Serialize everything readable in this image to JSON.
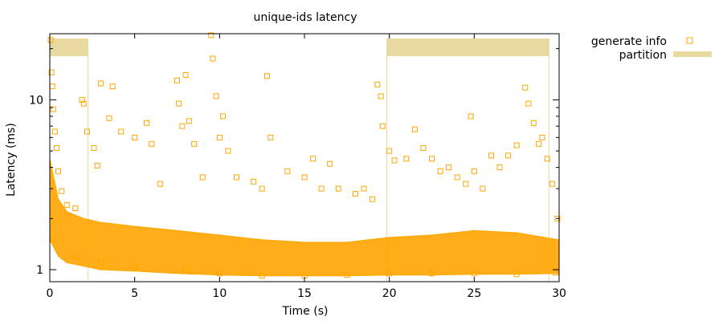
{
  "chart_data": {
    "type": "scatter",
    "title": "unique-ids latency",
    "xlabel": "Time (s)",
    "ylabel": "Latency (ms)",
    "xlim": [
      0,
      30
    ],
    "ylim": [
      0.85,
      24.5
    ],
    "yscale": "log",
    "grid": false,
    "legend_position": "top-right outside",
    "xticks": [
      0,
      5,
      10,
      15,
      20,
      25,
      30
    ],
    "xtick_labels": [
      "0",
      "5",
      "10",
      "15",
      "20",
      "25",
      "30"
    ],
    "yticks": [
      1,
      10
    ],
    "ytick_labels": [
      "1",
      "10"
    ],
    "series": [
      {
        "name": "generate info",
        "marker": "open-square",
        "color": "#ffa500",
        "points": [
          [
            0.05,
            22.5
          ],
          [
            0.1,
            14.5
          ],
          [
            0.15,
            12.0
          ],
          [
            0.2,
            8.8
          ],
          [
            0.3,
            6.5
          ],
          [
            0.4,
            5.2
          ],
          [
            0.5,
            3.8
          ],
          [
            0.7,
            2.9
          ],
          [
            1.0,
            2.4
          ],
          [
            1.5,
            2.3
          ],
          [
            1.9,
            10.0
          ],
          [
            2.0,
            9.5
          ],
          [
            2.2,
            6.5
          ],
          [
            2.6,
            5.2
          ],
          [
            2.8,
            4.1
          ],
          [
            3.0,
            12.5
          ],
          [
            3.5,
            7.8
          ],
          [
            3.7,
            12.0
          ],
          [
            4.2,
            6.5
          ],
          [
            5.0,
            6.0
          ],
          [
            5.7,
            7.3
          ],
          [
            6.0,
            5.5
          ],
          [
            6.5,
            3.2
          ],
          [
            7.5,
            13.0
          ],
          [
            7.6,
            9.5
          ],
          [
            7.8,
            7.0
          ],
          [
            8.0,
            14.0
          ],
          [
            8.2,
            7.5
          ],
          [
            8.5,
            5.5
          ],
          [
            9.0,
            3.5
          ],
          [
            9.5,
            24.0
          ],
          [
            9.6,
            17.5
          ],
          [
            9.8,
            10.5
          ],
          [
            10.2,
            8.0
          ],
          [
            10.0,
            6.0
          ],
          [
            10.5,
            5.0
          ],
          [
            11.0,
            3.5
          ],
          [
            12.0,
            3.3
          ],
          [
            12.5,
            3.0
          ],
          [
            12.8,
            13.8
          ],
          [
            13.0,
            6.0
          ],
          [
            14.0,
            3.8
          ],
          [
            15.0,
            3.5
          ],
          [
            15.5,
            4.5
          ],
          [
            16.0,
            3.0
          ],
          [
            16.5,
            4.2
          ],
          [
            17.0,
            3.0
          ],
          [
            18.0,
            2.8
          ],
          [
            18.5,
            3.0
          ],
          [
            19.0,
            2.6
          ],
          [
            19.3,
            12.3
          ],
          [
            19.5,
            10.5
          ],
          [
            19.6,
            7.0
          ],
          [
            20.0,
            5.0
          ],
          [
            20.3,
            4.4
          ],
          [
            21.0,
            4.5
          ],
          [
            21.5,
            6.7
          ],
          [
            22.0,
            5.2
          ],
          [
            22.5,
            4.5
          ],
          [
            23.0,
            3.8
          ],
          [
            23.5,
            4.0
          ],
          [
            24.0,
            3.5
          ],
          [
            24.5,
            3.2
          ],
          [
            24.8,
            8.0
          ],
          [
            25.0,
            3.8
          ],
          [
            25.5,
            3.0
          ],
          [
            26.0,
            4.7
          ],
          [
            26.5,
            4.0
          ],
          [
            27.0,
            4.7
          ],
          [
            27.5,
            5.4
          ],
          [
            28.0,
            11.8
          ],
          [
            28.2,
            9.5
          ],
          [
            28.5,
            7.3
          ],
          [
            28.8,
            5.5
          ],
          [
            29.0,
            6.0
          ],
          [
            29.3,
            4.5
          ],
          [
            29.6,
            3.2
          ],
          [
            29.9,
            2.0
          ],
          [
            0.2,
            1.5
          ],
          [
            1.5,
            1.2
          ],
          [
            3.0,
            1.1
          ],
          [
            5.0,
            1.05
          ],
          [
            8.0,
            1.0
          ],
          [
            10.0,
            0.95
          ],
          [
            12.5,
            0.92
          ],
          [
            15.0,
            0.92
          ],
          [
            17.5,
            0.93
          ],
          [
            20.0,
            0.95
          ],
          [
            22.5,
            0.95
          ],
          [
            25.0,
            0.95
          ],
          [
            27.5,
            0.94
          ],
          [
            29.8,
            0.96
          ]
        ],
        "density_band": {
          "x": [
            0,
            0.5,
            1,
            2,
            3,
            5,
            7.5,
            10,
            12.5,
            15,
            17.5,
            20,
            22.5,
            25,
            27.5,
            30
          ],
          "low": [
            1.5,
            1.2,
            1.1,
            1.05,
            1.0,
            0.98,
            0.95,
            0.93,
            0.92,
            0.92,
            0.92,
            0.93,
            0.93,
            0.94,
            0.94,
            0.95
          ],
          "high": [
            4.5,
            2.6,
            2.2,
            2.0,
            1.9,
            1.8,
            1.7,
            1.6,
            1.5,
            1.45,
            1.45,
            1.55,
            1.6,
            1.7,
            1.65,
            1.5
          ]
        }
      },
      {
        "name": "partition",
        "style": "interval-bar",
        "color": "#e8d9a0",
        "intervals": [
          [
            0,
            2.25
          ],
          [
            19.85,
            29.4
          ]
        ]
      }
    ]
  }
}
